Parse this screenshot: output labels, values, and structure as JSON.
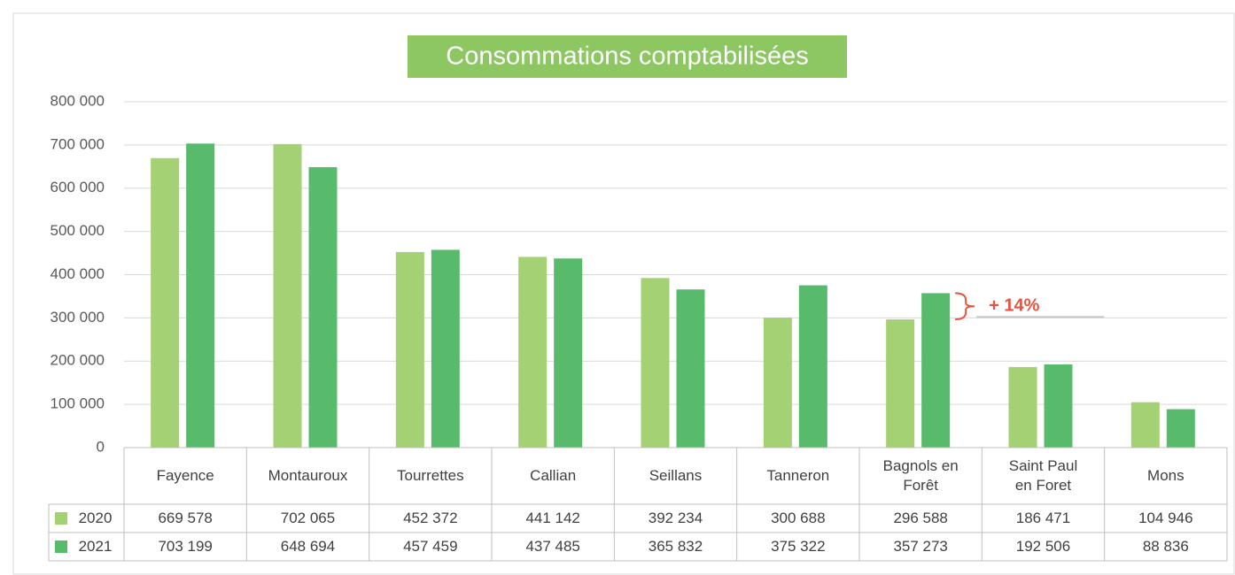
{
  "chart_data": {
    "type": "bar",
    "title": "Consommations comptabilisées",
    "categories": [
      "Fayence",
      "Montauroux",
      "Tourrettes",
      "Callian",
      "Seillans",
      "Tanneron",
      "Bagnols en Forêt",
      "Saint Paul en Foret",
      "Mons"
    ],
    "series": [
      {
        "name": "2020",
        "color": "#a3d174",
        "values": [
          669578,
          702065,
          452372,
          441142,
          392234,
          300688,
          296588,
          186471,
          104946
        ],
        "value_labels": [
          "669 578",
          "702 065",
          "452 372",
          "441 142",
          "392 234",
          "300 688",
          "296 588",
          "186 471",
          "104 946"
        ]
      },
      {
        "name": "2021",
        "color": "#58bb6b",
        "values": [
          703199,
          648694,
          457459,
          437485,
          365832,
          375322,
          357273,
          192506,
          88836
        ],
        "value_labels": [
          "703 199",
          "648 694",
          "457 459",
          "437 485",
          "365 832",
          "375 322",
          "357 273",
          "192 506",
          "88 836"
        ]
      }
    ],
    "ylim": [
      0,
      800000
    ],
    "yticks": [
      0,
      {
        "value": 100000,
        "label": "100 000"
      },
      {
        "value": 200000,
        "label": "200 000"
      },
      {
        "value": 300000,
        "label": "300 000"
      },
      {
        "value": 400000,
        "label": "400 000"
      },
      {
        "value": 500000,
        "label": "500 000"
      },
      {
        "value": 600000,
        "label": "600 000"
      },
      {
        "value": 700000,
        "label": "700 000"
      },
      {
        "value": 800000,
        "label": "800 000"
      }
    ],
    "grid": true,
    "annotation": "+ 14%"
  }
}
